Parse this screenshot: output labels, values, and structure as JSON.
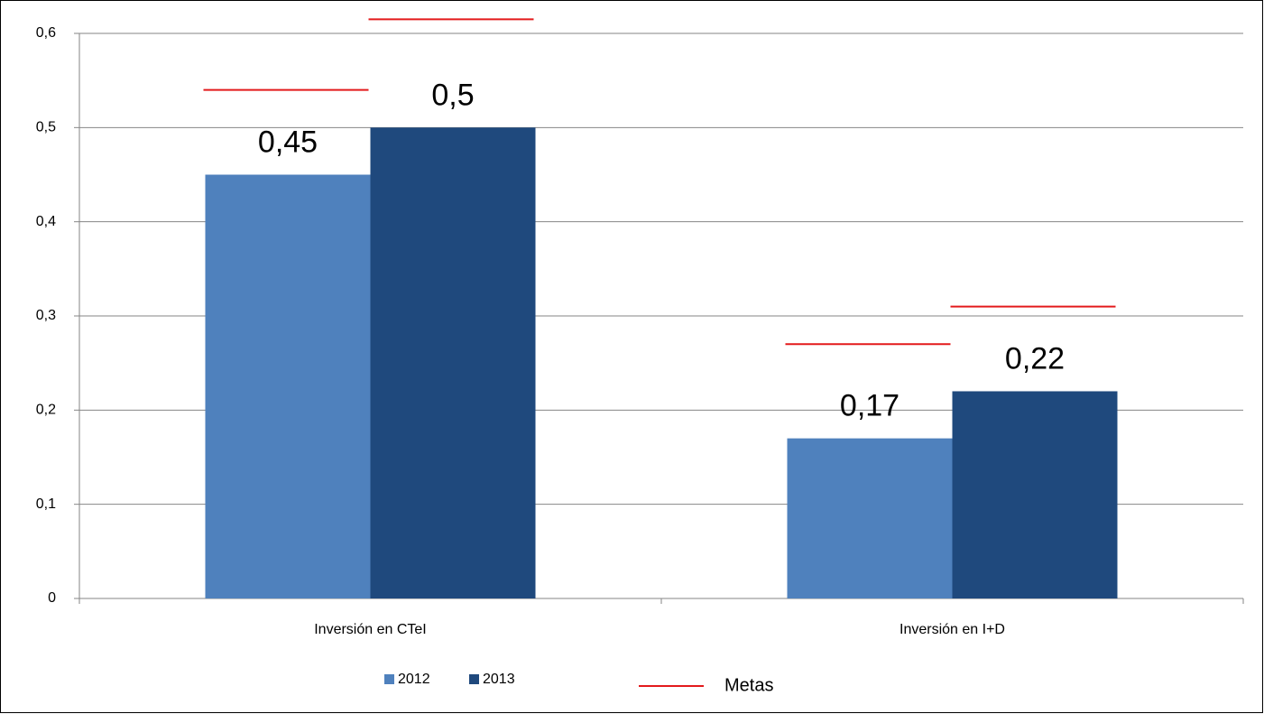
{
  "chart_data": {
    "type": "bar",
    "categories": [
      "Inversión en CTeI",
      "Inversión en I+D"
    ],
    "series": [
      {
        "name": "2012",
        "color": "#4f81bd",
        "values": [
          0.45,
          0.17
        ],
        "value_labels": [
          "0,45",
          "0,17"
        ]
      },
      {
        "name": "2013",
        "color": "#1f497d",
        "values": [
          0.5,
          0.22
        ],
        "value_labels": [
          "0,5",
          "0,22"
        ]
      }
    ],
    "targets": {
      "name": "Metas",
      "color": "#e31a1c",
      "values": [
        [
          0.54,
          0.27
        ],
        [
          0.615,
          0.31
        ]
      ]
    },
    "ylim": [
      0,
      0.6
    ],
    "yticks": [
      0,
      {
        "value": 0.1,
        "label": "0,1"
      },
      {
        "value": 0.2,
        "label": "0,2"
      },
      {
        "value": 0.3,
        "label": "0,3"
      },
      {
        "value": 0.4,
        "label": "0,4"
      },
      {
        "value": 0.5,
        "label": "0,5"
      },
      {
        "value": 0.6,
        "label": "0,6"
      }
    ],
    "grid": true
  }
}
